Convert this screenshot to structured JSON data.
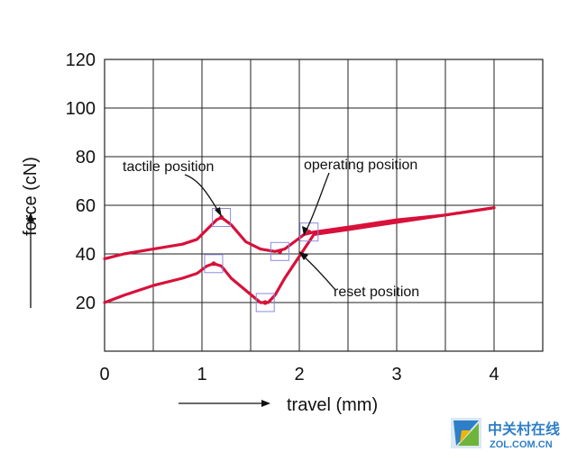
{
  "chart_data": {
    "type": "line",
    "xlabel": "travel (mm)",
    "ylabel": "force (cN)",
    "xlim": [
      0,
      4.5
    ],
    "ylim": [
      0,
      120
    ],
    "x_ticks": [
      "0",
      "1",
      "2",
      "3",
      "4"
    ],
    "y_ticks": [
      "20",
      "40",
      "60",
      "80",
      "100",
      "120"
    ],
    "grid": true,
    "series": [
      {
        "x": [
          0,
          0.2,
          0.5,
          0.8,
          0.95,
          1.05,
          1.15,
          1.2,
          1.3,
          1.45,
          1.6,
          1.75,
          1.85,
          1.95,
          2.05,
          2.15,
          2.5,
          3.0,
          3.5,
          4.0
        ],
        "y": [
          38,
          40,
          42,
          44,
          46,
          50,
          54,
          55,
          52,
          45,
          42,
          41,
          42,
          45,
          48,
          49,
          51,
          54,
          56,
          59
        ]
      },
      {
        "x": [
          0,
          0.2,
          0.5,
          0.8,
          0.95,
          1.05,
          1.12,
          1.2,
          1.3,
          1.45,
          1.6,
          1.68,
          1.75,
          1.85,
          1.95,
          2.05,
          2.15,
          2.5,
          3.0,
          3.5,
          4.0
        ],
        "y": [
          20,
          23,
          27,
          30,
          32,
          35,
          36,
          35,
          30,
          25,
          20,
          20,
          23,
          30,
          36,
          42,
          48,
          50,
          53,
          56,
          59
        ]
      }
    ],
    "annotations": [
      {
        "text": "tactile position",
        "x": 1.2,
        "y": 55
      },
      {
        "text": "operating position",
        "x": 2.05,
        "y": 48
      },
      {
        "text": "reset position",
        "x": 2.0,
        "y": 40
      }
    ]
  },
  "watermark": {
    "line1": "中关村在线",
    "line2": "ZOL.COM.CN"
  },
  "colors": {
    "series": "#d8103a",
    "marker_box": "#8a8ae0",
    "watermark": "#2f7fc8"
  }
}
